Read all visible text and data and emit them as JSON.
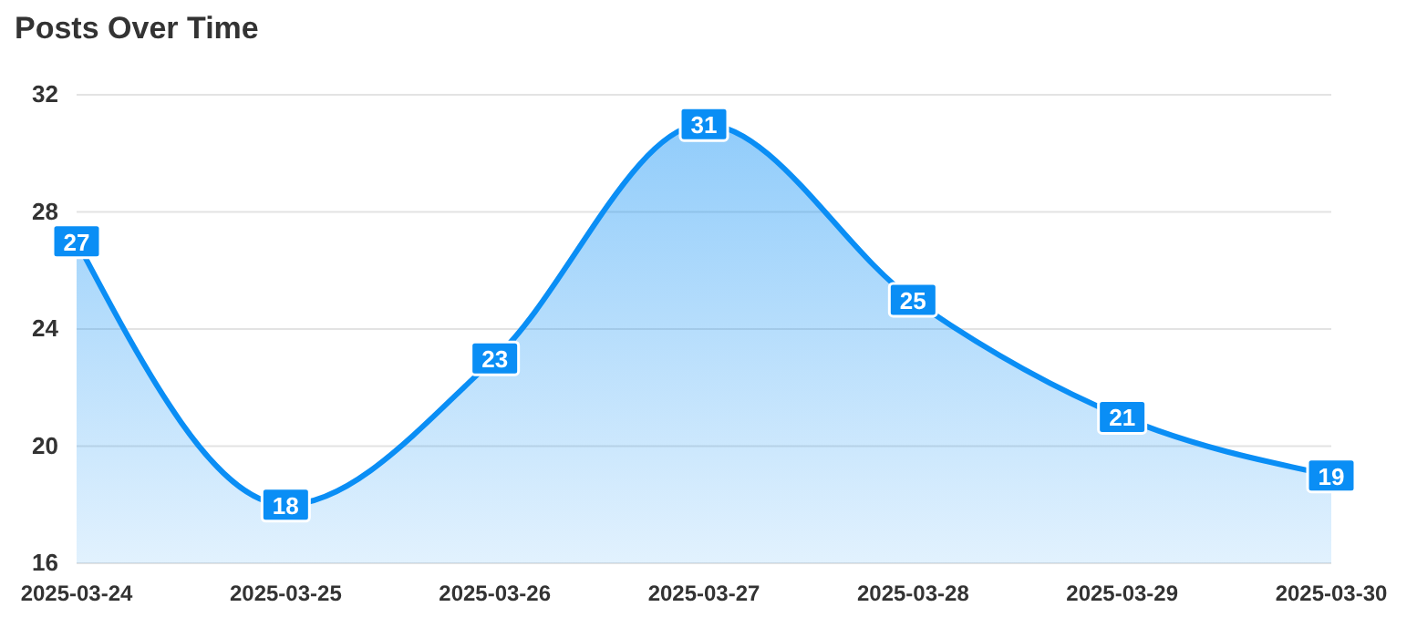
{
  "chart_data": {
    "type": "area",
    "title": "Posts Over Time",
    "categories": [
      "2025-03-24",
      "2025-03-25",
      "2025-03-26",
      "2025-03-27",
      "2025-03-28",
      "2025-03-29",
      "2025-03-30"
    ],
    "values": [
      27,
      18,
      23,
      31,
      25,
      21,
      19
    ],
    "color": "#0a8ef5",
    "ylim": [
      16,
      32
    ],
    "yticks": [
      16,
      20,
      24,
      28,
      32
    ],
    "grid": "y",
    "data_labels": true
  }
}
